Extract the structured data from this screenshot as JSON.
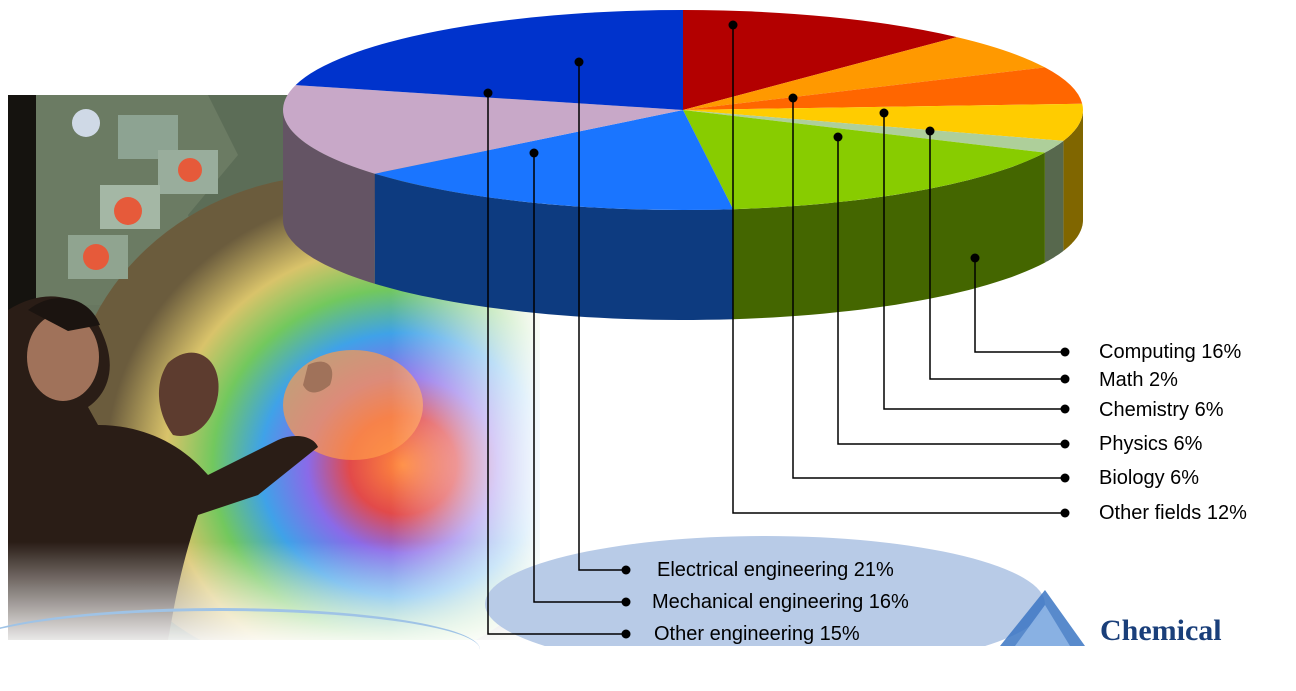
{
  "chart_data": {
    "type": "pie",
    "title": "",
    "slices": [
      {
        "name": "Other fields",
        "value": 12,
        "label": "Other fields 12%",
        "color": "#b30000"
      },
      {
        "name": "Biology",
        "value": 6,
        "label": "Biology 6%",
        "color": "#ff9900"
      },
      {
        "name": "Chemistry",
        "value": 6,
        "label": "Chemistry 6%",
        "color": "#ff6600"
      },
      {
        "name": "Physics",
        "value": 6,
        "label": "Physics 6%",
        "color": "#ffcc00"
      },
      {
        "name": "Math",
        "value": 2,
        "label": "Math 2%",
        "color": "#aecf9a"
      },
      {
        "name": "Computing",
        "value": 16,
        "label": "Computing 16%",
        "color": "#88cc00"
      },
      {
        "name": "Mechanical engineering",
        "value": 16,
        "label": "Mechanical engineering 16%",
        "color": "#1a75ff"
      },
      {
        "name": "Other engineering",
        "value": 15,
        "label": "Other engineering 15%",
        "color": "#c8a8c8"
      },
      {
        "name": "Electrical engineering",
        "value": 21,
        "label": "Electrical engineering 21%",
        "color": "#0033cc"
      }
    ],
    "legend_order": [
      "Computing",
      "Math",
      "Chemistry",
      "Physics",
      "Biology",
      "Other fields",
      "Electrical engineering",
      "Mechanical engineering",
      "Other engineering"
    ],
    "style": "3d-pie",
    "legend": "right and bottom callouts"
  },
  "footer": {
    "logo_text": "Chemical"
  }
}
